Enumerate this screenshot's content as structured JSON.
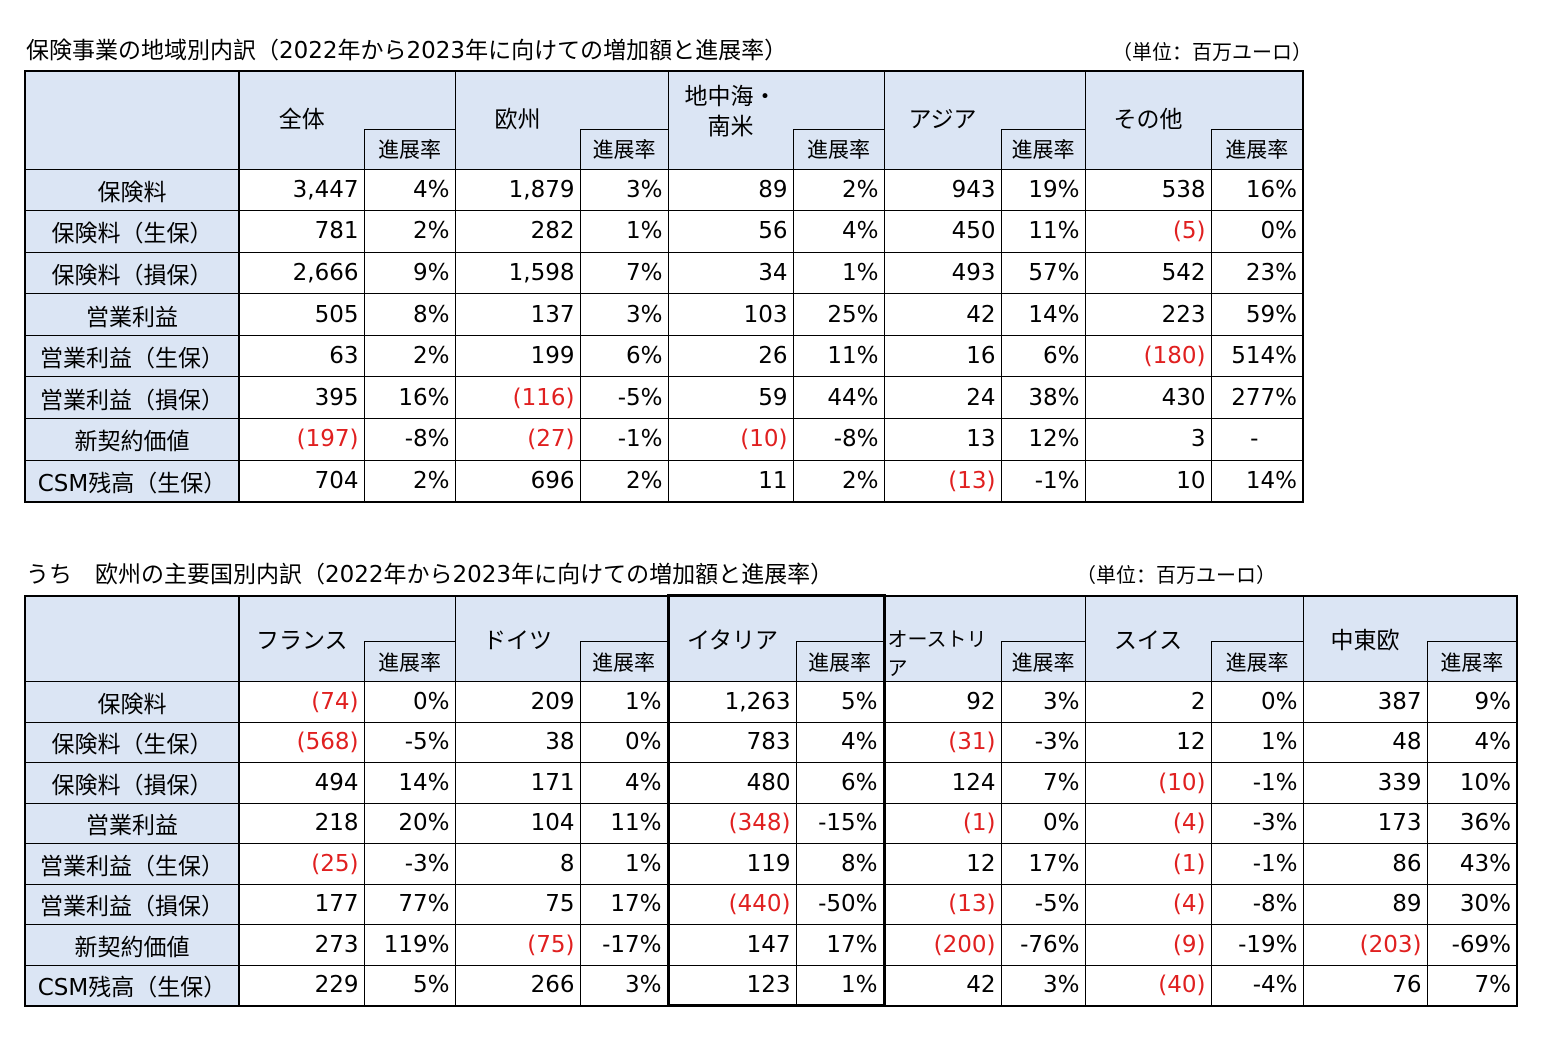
{
  "table1": {
    "title": "保険事業の地域別内訳（2022年から2023年に向けての増加額と進展率）",
    "unit": "（単位：百万ユーロ）",
    "groups": [
      "全体",
      "欧州",
      "地中海・\n南米",
      "アジア",
      "その他"
    ],
    "sub_label": "進展率",
    "rows": [
      {
        "label": "保険料",
        "cells": [
          "3,447",
          "4%",
          "1,879",
          "3%",
          "89",
          "2%",
          "943",
          "19%",
          "538",
          "16%"
        ]
      },
      {
        "label": "保険料（生保）",
        "cells": [
          "781",
          "2%",
          "282",
          "1%",
          "56",
          "4%",
          "450",
          "11%",
          "(5)",
          "0%"
        ]
      },
      {
        "label": "保険料（損保）",
        "cells": [
          "2,666",
          "9%",
          "1,598",
          "7%",
          "34",
          "1%",
          "493",
          "57%",
          "542",
          "23%"
        ]
      },
      {
        "label": "営業利益",
        "cells": [
          "505",
          "8%",
          "137",
          "3%",
          "103",
          "25%",
          "42",
          "14%",
          "223",
          "59%"
        ]
      },
      {
        "label": "営業利益（生保）",
        "cells": [
          "63",
          "2%",
          "199",
          "6%",
          "26",
          "11%",
          "16",
          "6%",
          "(180)",
          "514%"
        ]
      },
      {
        "label": "営業利益（損保）",
        "cells": [
          "395",
          "16%",
          "(116)",
          "-5%",
          "59",
          "44%",
          "24",
          "38%",
          "430",
          "277%"
        ]
      },
      {
        "label": "新契約価値",
        "cells": [
          "(197)",
          "-8%",
          "(27)",
          "-1%",
          "(10)",
          "-8%",
          "13",
          "12%",
          "3",
          "-"
        ]
      },
      {
        "label": "CSM残高（生保）",
        "cells": [
          "704",
          "2%",
          "696",
          "2%",
          "11",
          "2%",
          "(13)",
          "-1%",
          "10",
          "14%"
        ]
      }
    ]
  },
  "table2": {
    "title": "うち　欧州の主要国別内訳（2022年から2023年に向けての増加額と進展率）",
    "unit": "（単位：百万ユーロ）",
    "groups": [
      "フランス",
      "ドイツ",
      "イタリア",
      "オーストリア",
      "スイス",
      "中東欧"
    ],
    "sub_label": "進展率",
    "rows": [
      {
        "label": "保険料",
        "cells": [
          "(74)",
          "0%",
          "209",
          "1%",
          "1,263",
          "5%",
          "92",
          "3%",
          "2",
          "0%",
          "387",
          "9%"
        ]
      },
      {
        "label": "保険料（生保）",
        "cells": [
          "(568)",
          "-5%",
          "38",
          "0%",
          "783",
          "4%",
          "(31)",
          "-3%",
          "12",
          "1%",
          "48",
          "4%"
        ]
      },
      {
        "label": "保険料（損保）",
        "cells": [
          "494",
          "14%",
          "171",
          "4%",
          "480",
          "6%",
          "124",
          "7%",
          "(10)",
          "-1%",
          "339",
          "10%"
        ]
      },
      {
        "label": "営業利益",
        "cells": [
          "218",
          "20%",
          "104",
          "11%",
          "(348)",
          "-15%",
          "(1)",
          "0%",
          "(4)",
          "-3%",
          "173",
          "36%"
        ]
      },
      {
        "label": "営業利益（生保）",
        "cells": [
          "(25)",
          "-3%",
          "8",
          "1%",
          "119",
          "8%",
          "12",
          "17%",
          "(1)",
          "-1%",
          "86",
          "43%"
        ]
      },
      {
        "label": "営業利益（損保）",
        "cells": [
          "177",
          "77%",
          "75",
          "17%",
          "(440)",
          "-50%",
          "(13)",
          "-5%",
          "(4)",
          "-8%",
          "89",
          "30%"
        ]
      },
      {
        "label": "新契約価値",
        "cells": [
          "273",
          "119%",
          "(75)",
          "-17%",
          "147",
          "17%",
          "(200)",
          "-76%",
          "(9)",
          "-19%",
          "(203)",
          "-69%"
        ]
      },
      {
        "label": "CSM残高（生保）",
        "cells": [
          "229",
          "5%",
          "266",
          "3%",
          "123",
          "1%",
          "42",
          "3%",
          "(40)",
          "-4%",
          "76",
          "7%"
        ]
      }
    ]
  },
  "colors": {
    "header_bg": "#dbe5f4",
    "negative": "#e02020"
  }
}
